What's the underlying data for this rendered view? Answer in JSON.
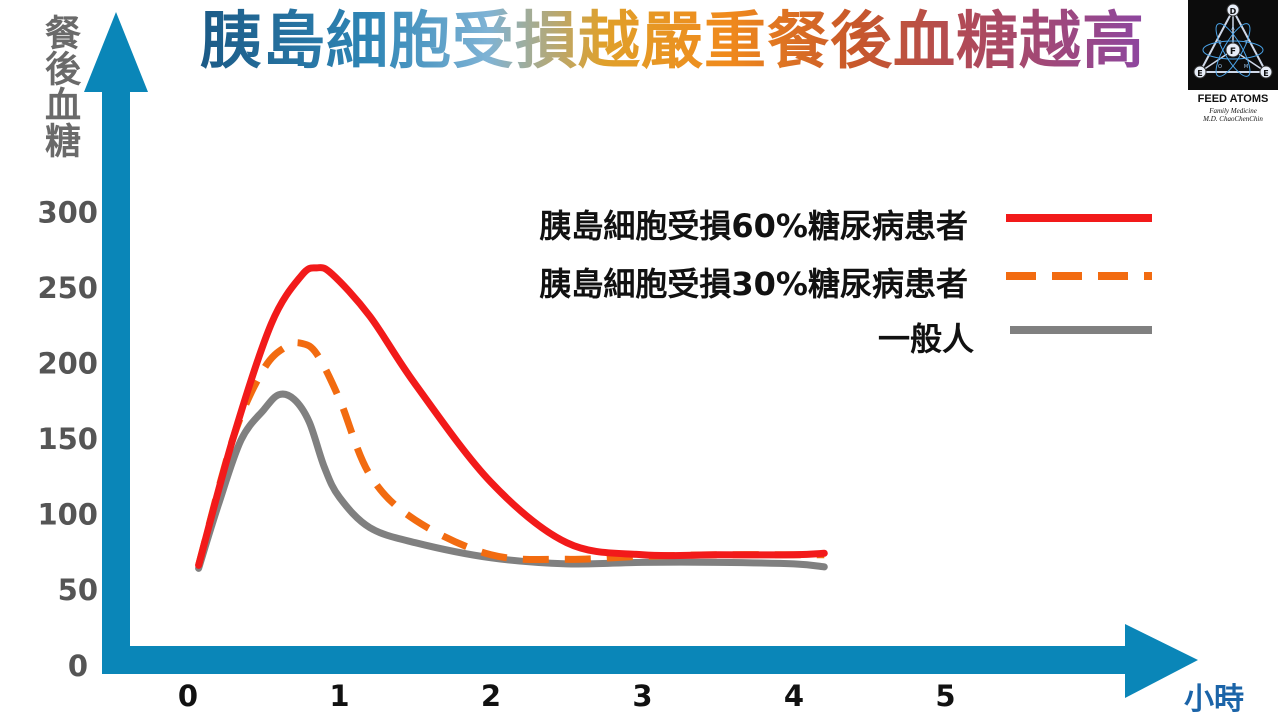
{
  "chart_data": {
    "type": "line",
    "title": "胰島細胞受損越嚴重餐後血糖越高",
    "ylabel": "餐後血糖",
    "xlabel": "小時",
    "xlim": [
      0,
      5
    ],
    "ylim": [
      0,
      300
    ],
    "x_ticks": [
      "0",
      "1",
      "2",
      "3",
      "4",
      "5"
    ],
    "y_ticks": [
      "0",
      "50",
      "100",
      "150",
      "200",
      "250",
      "300"
    ],
    "legend_position": "top-right",
    "series": [
      {
        "name": "胰島細胞受損60%糖尿病患者",
        "color": "#f21a1a",
        "style": "solid",
        "x": [
          0.07,
          0.3,
          0.55,
          0.75,
          0.85,
          0.95,
          1.2,
          1.5,
          2.0,
          2.5,
          3.0,
          3.5,
          4.0,
          4.2
        ],
        "y": [
          65,
          150,
          225,
          257,
          262,
          258,
          230,
          185,
          120,
          80,
          72,
          72,
          72,
          73
        ]
      },
      {
        "name": "胰島細胞受損30%糖尿病患者",
        "color": "#f26b10",
        "style": "dashed",
        "x": [
          0.07,
          0.3,
          0.5,
          0.65,
          0.75,
          0.85,
          1.0,
          1.2,
          1.5,
          2.0,
          2.5,
          3.0,
          3.5,
          4.0,
          4.2
        ],
        "y": [
          65,
          150,
          195,
          210,
          212,
          205,
          175,
          125,
          95,
          72,
          69,
          71,
          72,
          72,
          72
        ]
      },
      {
        "name": "一般人",
        "color": "#808080",
        "style": "solid",
        "x": [
          0.07,
          0.2,
          0.35,
          0.5,
          0.6,
          0.7,
          0.8,
          0.9,
          1.0,
          1.2,
          1.5,
          2.0,
          2.5,
          3.0,
          3.5,
          4.0,
          4.2
        ],
        "y": [
          63,
          105,
          148,
          168,
          178,
          175,
          160,
          130,
          110,
          90,
          80,
          70,
          66,
          67,
          67,
          66,
          64
        ]
      }
    ]
  },
  "logo": {
    "name": "FEED ATOMS",
    "subtitle_1": "Family Medicine",
    "subtitle_2": "M.D. ChaoChenChin",
    "letters": [
      "D",
      "F",
      "E",
      "E"
    ],
    "small_letters": [
      "A",
      "T",
      "O",
      "M",
      "S"
    ]
  }
}
